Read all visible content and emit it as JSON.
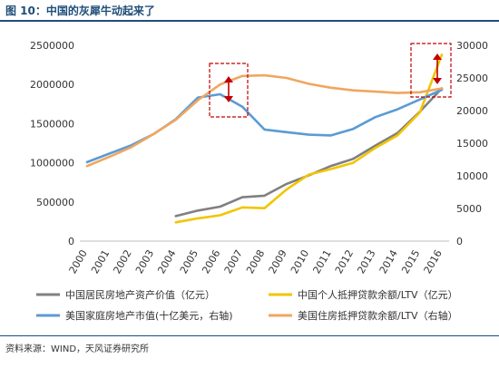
{
  "header": {
    "title": "图 10：中国的灰犀牛动起来了"
  },
  "footer": {
    "source": "资料来源：WIND，天风证券研究所"
  },
  "colors": {
    "grey": "#808080",
    "yellow": "#f2c500",
    "blue": "#5b9bd5",
    "orange": "#f0a660",
    "annotation": "#c00000"
  },
  "chart_data": {
    "type": "line",
    "title": "图 10：中国的灰犀牛动起来了",
    "x": [
      "2000",
      "2001",
      "2002",
      "2003",
      "2004",
      "2005",
      "2006",
      "2007",
      "2008",
      "2009",
      "2010",
      "2011",
      "2012",
      "2013",
      "2014",
      "2015",
      "2016"
    ],
    "y_left": {
      "min": 0,
      "max": 2500000,
      "ticks": [
        "0",
        "500000",
        "1000000",
        "1500000",
        "2000000",
        "2500000"
      ]
    },
    "y_right": {
      "min": 0,
      "max": 30000,
      "ticks": [
        "0",
        "5000",
        "10000",
        "15000",
        "20000",
        "25000",
        "30000"
      ]
    },
    "series": [
      {
        "name": "中国居民房地产资产价值（亿元）",
        "axis": "left",
        "color": "#808080",
        "values": [
          null,
          null,
          null,
          null,
          320000,
          390000,
          440000,
          560000,
          580000,
          730000,
          840000,
          960000,
          1050000,
          1220000,
          1380000,
          1650000,
          1950000
        ]
      },
      {
        "name": "中国个人抵押贷款余额/LTV（亿元）",
        "axis": "left",
        "color": "#f2c500",
        "values": [
          null,
          null,
          null,
          null,
          240000,
          290000,
          330000,
          430000,
          420000,
          660000,
          850000,
          920000,
          1000000,
          1190000,
          1350000,
          1640000,
          2380000
        ]
      },
      {
        "name": "美国家庭房地产市值(十亿美元，右轴)",
        "axis": "right",
        "color": "#5b9bd5",
        "values": [
          12100,
          13400,
          14700,
          16400,
          18700,
          22000,
          22500,
          20600,
          17100,
          16700,
          16300,
          16200,
          17200,
          19000,
          20200,
          21700,
          23200
        ]
      },
      {
        "name": "美国住房抵押贷款余额/LTV（右轴）",
        "axis": "right",
        "color": "#f0a660",
        "values": [
          11500,
          12900,
          14400,
          16400,
          18600,
          21600,
          24000,
          25300,
          25400,
          25000,
          24100,
          23500,
          23100,
          22900,
          22700,
          22800,
          23400
        ]
      }
    ],
    "legend_position": "bottom",
    "grid": false
  }
}
